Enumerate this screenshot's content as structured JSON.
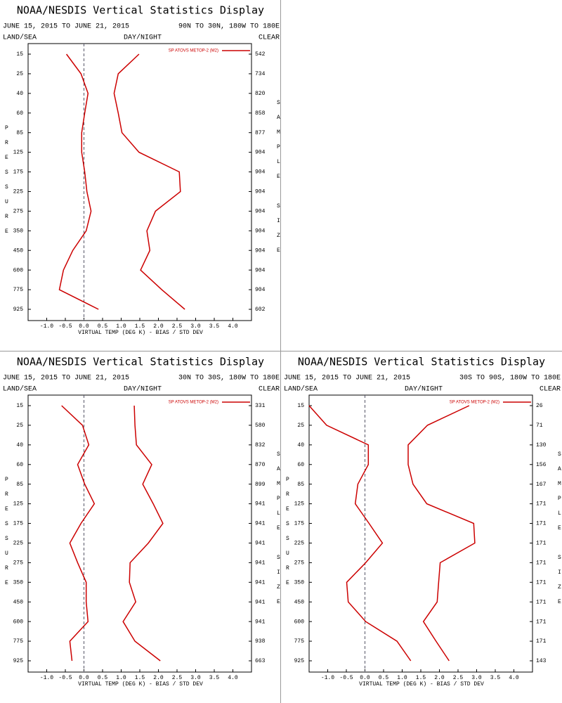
{
  "chart_data": [
    {
      "type": "line",
      "title": "NOAA/NESDIS Vertical Statistics Display",
      "subtitle": "JUNE 15, 2015 TO JUNE 21, 2015",
      "region": "90N TO 30N, 180W TO 180E",
      "land_sea": "LAND/SEA",
      "day_night": "DAY/NIGHT",
      "clear": "CLEAR",
      "ylabel": "PRESSURE",
      "y2label": "SAMPLE SIZE",
      "xlabel": "VIRTUAL TEMP (DEG K) - BIAS / STD DEV",
      "categories": [
        15,
        25,
        40,
        60,
        85,
        125,
        175,
        225,
        275,
        350,
        450,
        600,
        775,
        925
      ],
      "sample_size": [
        542,
        734,
        820,
        858,
        877,
        904,
        904,
        904,
        904,
        904,
        904,
        904,
        904,
        602
      ],
      "series": [
        {
          "name": "SP ATOVS METOP-2 (M2)",
          "color": "#cc0000",
          "bias": [
            -0.47,
            -0.08,
            0.11,
            0.02,
            -0.06,
            -0.06,
            0.02,
            0.08,
            0.19,
            0.06,
            -0.3,
            -0.55,
            -0.66,
            0.39
          ],
          "std_dev": [
            1.48,
            0.92,
            0.81,
            0.92,
            1.02,
            1.48,
            2.56,
            2.59,
            1.92,
            1.69,
            1.77,
            1.52,
            2.09,
            2.71
          ]
        }
      ],
      "xlim": [
        -1.5,
        4.5
      ],
      "xticks": [
        {
          "value": -1,
          "label": "-1.0"
        },
        {
          "value": -0.5,
          "label": "-0.5"
        },
        {
          "value": 0,
          "label": "0.0"
        },
        {
          "value": 0.5,
          "label": "0.5"
        },
        {
          "value": 1,
          "label": "1.0"
        },
        {
          "value": 1.5,
          "label": "1.5"
        },
        {
          "value": 2,
          "label": "2.0"
        },
        {
          "value": 2.5,
          "label": "2.5"
        },
        {
          "value": 3,
          "label": "3.0"
        },
        {
          "value": 3.5,
          "label": "3.5"
        },
        {
          "value": 4,
          "label": "4.0"
        }
      ]
    },
    {
      "type": "line",
      "title": "NOAA/NESDIS Vertical Statistics Display",
      "subtitle": "JUNE 15, 2015 TO JUNE 21, 2015",
      "region": "30N TO 30S, 180W TO 180E",
      "land_sea": "LAND/SEA",
      "day_night": "DAY/NIGHT",
      "clear": "CLEAR",
      "ylabel": "PRESSURE",
      "y2label": "SAMPLE SIZE",
      "xlabel": "VIRTUAL TEMP (DEG K) - BIAS / STD DEV",
      "categories": [
        15,
        25,
        40,
        60,
        85,
        125,
        175,
        225,
        275,
        350,
        450,
        600,
        775,
        925
      ],
      "sample_size": [
        331,
        580,
        832,
        870,
        899,
        941,
        941,
        941,
        941,
        941,
        941,
        941,
        938,
        663
      ],
      "series": [
        {
          "name": "SP ATOVS METOP-2 (M2)",
          "color": "#cc0000",
          "bias": [
            -0.6,
            -0.04,
            0.13,
            -0.17,
            0.02,
            0.28,
            -0.08,
            -0.38,
            -0.17,
            0.06,
            0.06,
            0.11,
            -0.38,
            -0.32
          ],
          "std_dev": [
            1.35,
            1.37,
            1.41,
            1.82,
            1.58,
            1.86,
            2.12,
            1.73,
            1.24,
            1.22,
            1.39,
            1.05,
            1.37,
            2.05
          ]
        }
      ],
      "xlim": [
        -1.5,
        4.5
      ],
      "xticks": [
        {
          "value": -1,
          "label": "-1.0"
        },
        {
          "value": -0.5,
          "label": "-0.5"
        },
        {
          "value": 0,
          "label": "0.0"
        },
        {
          "value": 0.5,
          "label": "0.5"
        },
        {
          "value": 1,
          "label": "1.0"
        },
        {
          "value": 1.5,
          "label": "1.5"
        },
        {
          "value": 2,
          "label": "2.0"
        },
        {
          "value": 2.5,
          "label": "2.5"
        },
        {
          "value": 3,
          "label": "3.0"
        },
        {
          "value": 3.5,
          "label": "3.5"
        },
        {
          "value": 4,
          "label": "4.0"
        }
      ]
    },
    {
      "type": "line",
      "title": "NOAA/NESDIS Vertical Statistics Display",
      "subtitle": "JUNE 15, 2015 TO JUNE 21, 2015",
      "region": "30S TO 90S, 180W TO 180E",
      "land_sea": "LAND/SEA",
      "day_night": "DAY/NIGHT",
      "clear": "CLEAR",
      "ylabel": "PRESSURE",
      "y2label": "SAMPLE SIZE",
      "xlabel": "VIRTUAL TEMP (DEG K) - BIAS / STD DEV",
      "categories": [
        15,
        25,
        40,
        60,
        85,
        125,
        175,
        225,
        275,
        350,
        450,
        600,
        775,
        925
      ],
      "sample_size": [
        26,
        71,
        130,
        156,
        167,
        171,
        171,
        171,
        171,
        171,
        171,
        171,
        171,
        143
      ],
      "series": [
        {
          "name": "SP ATOVS METOP-2 (M2)",
          "color": "#cc0000",
          "bias": [
            -1.5,
            -1.03,
            0.09,
            0.09,
            -0.19,
            -0.26,
            0.11,
            0.47,
            0.02,
            -0.49,
            -0.45,
            0.02,
            0.86,
            1.23
          ],
          "std_dev": [
            2.8,
            1.68,
            1.16,
            1.16,
            1.29,
            1.66,
            2.92,
            2.95,
            2.02,
            1.98,
            1.94,
            1.57,
            1.91,
            2.26
          ]
        }
      ],
      "xlim": [
        -1.5,
        4.5
      ],
      "xticks": [
        {
          "value": -1,
          "label": "-1.0"
        },
        {
          "value": -0.5,
          "label": "-0.5"
        },
        {
          "value": 0,
          "label": "0.0"
        },
        {
          "value": 0.5,
          "label": "0.5"
        },
        {
          "value": 1,
          "label": "1.0"
        },
        {
          "value": 1.5,
          "label": "1.5"
        },
        {
          "value": 2,
          "label": "2.0"
        },
        {
          "value": 2.5,
          "label": "2.5"
        },
        {
          "value": 3,
          "label": "3.0"
        },
        {
          "value": 3.5,
          "label": "3.5"
        },
        {
          "value": 4,
          "label": "4.0"
        }
      ]
    }
  ]
}
